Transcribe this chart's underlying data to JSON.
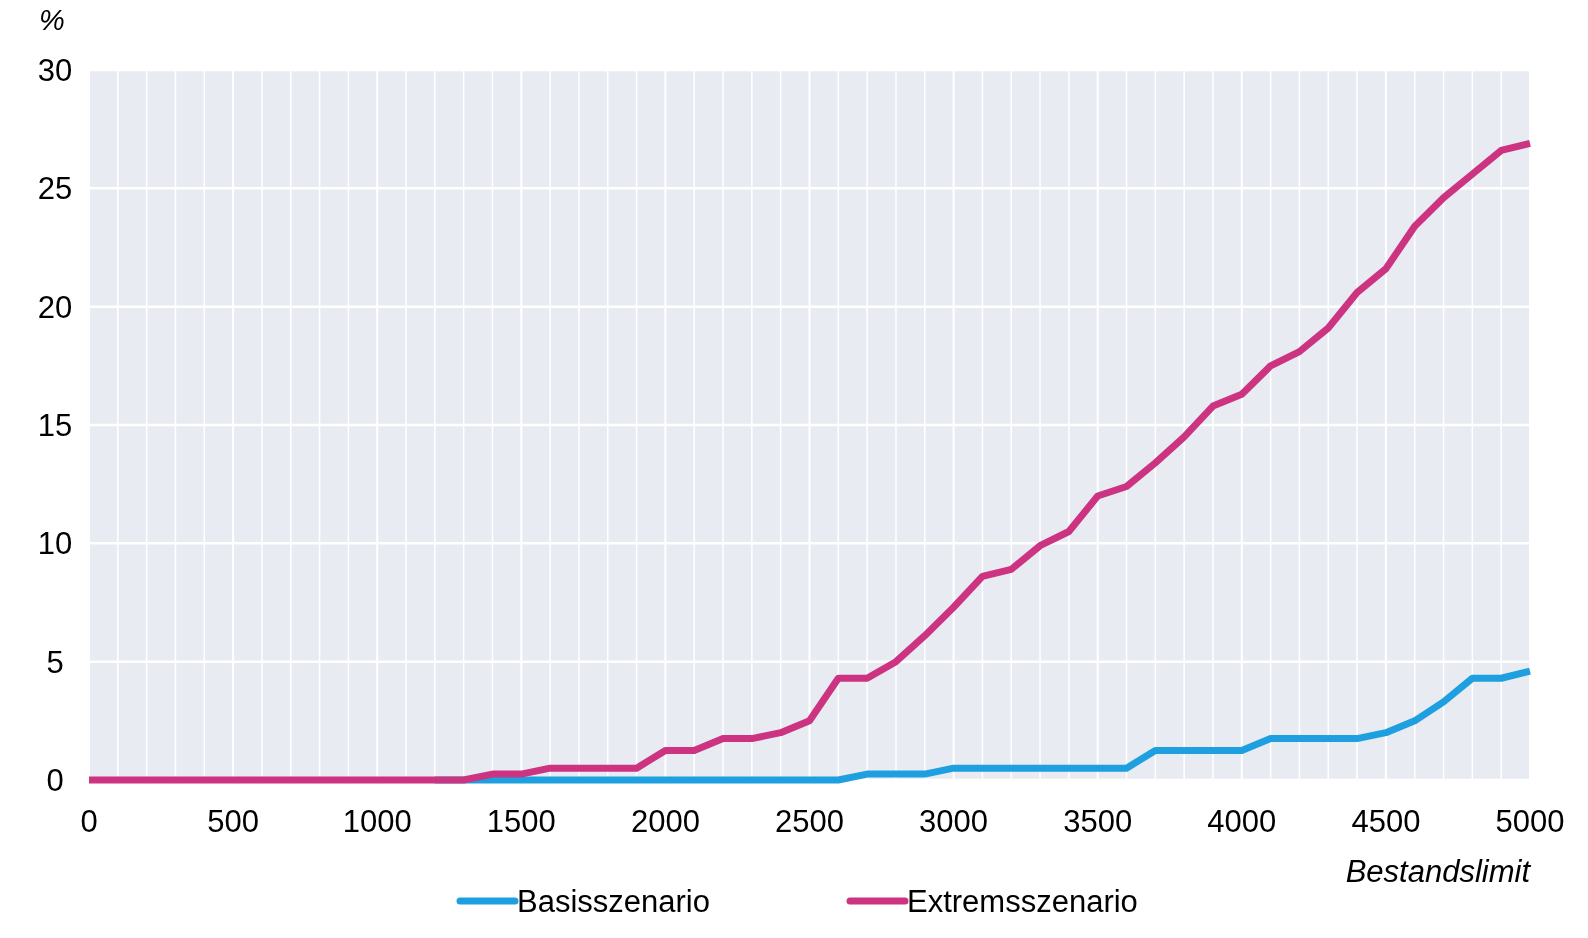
{
  "chart_data": {
    "type": "line",
    "ylabel": "%",
    "xlabel": "Bestandslimit",
    "x": [
      0,
      100,
      200,
      300,
      400,
      500,
      600,
      700,
      800,
      900,
      1000,
      1100,
      1200,
      1300,
      1400,
      1500,
      1600,
      1700,
      1800,
      1900,
      2000,
      2100,
      2200,
      2300,
      2400,
      2500,
      2600,
      2700,
      2800,
      2900,
      3000,
      3100,
      3200,
      3300,
      3400,
      3500,
      3600,
      3700,
      3800,
      3900,
      4000,
      4100,
      4200,
      4300,
      4400,
      4500,
      4600,
      4700,
      4800,
      4900,
      5000
    ],
    "series": [
      {
        "name": "Basisszenario",
        "color": "#1ea0e0",
        "values": [
          null,
          null,
          null,
          null,
          null,
          null,
          null,
          null,
          null,
          null,
          null,
          null,
          0,
          0,
          0,
          0,
          0,
          0,
          0,
          0,
          0,
          0,
          0,
          0,
          0,
          0,
          0,
          0.25,
          0.25,
          0.25,
          0.5,
          0.5,
          0.5,
          0.5,
          0.5,
          0.5,
          0.5,
          1.25,
          1.25,
          1.25,
          1.25,
          1.75,
          1.75,
          1.75,
          1.75,
          2.0,
          2.5,
          3.3,
          4.3,
          4.3,
          4.6
        ]
      },
      {
        "name": "Extremsszenario",
        "color": "#cc3380",
        "values": [
          0,
          0,
          0,
          0,
          0,
          0,
          0,
          0,
          0,
          0,
          0,
          0,
          0,
          0,
          0.25,
          0.25,
          0.5,
          0.5,
          0.5,
          0.5,
          1.25,
          1.25,
          1.75,
          1.75,
          2.0,
          2.5,
          4.3,
          4.3,
          5.0,
          6.1,
          7.3,
          8.6,
          8.9,
          9.9,
          10.5,
          12.0,
          12.4,
          13.4,
          14.5,
          15.8,
          16.3,
          17.5,
          18.1,
          19.1,
          20.6,
          21.6,
          23.4,
          24.6,
          25.6,
          26.6,
          26.9
        ]
      }
    ],
    "xlim": [
      0,
      5000
    ],
    "xticks": [
      0,
      {
        "value": 100,
        "label": null
      },
      {
        "value": 200,
        "label": null
      },
      {
        "value": 300,
        "label": null
      },
      {
        "value": 400,
        "label": null
      },
      500,
      {
        "value": 600,
        "label": null
      },
      {
        "value": 700,
        "label": null
      },
      {
        "value": 800,
        "label": null
      },
      {
        "value": 900,
        "label": null
      },
      1000,
      {
        "value": 1100,
        "label": null
      },
      {
        "value": 1200,
        "label": null
      },
      {
        "value": 1300,
        "label": null
      },
      {
        "value": 1400,
        "label": null
      },
      1500,
      {
        "value": 1600,
        "label": null
      },
      {
        "value": 1700,
        "label": null
      },
      {
        "value": 1800,
        "label": null
      },
      {
        "value": 1900,
        "label": null
      },
      2000,
      {
        "value": 2100,
        "label": null
      },
      {
        "value": 2200,
        "label": null
      },
      {
        "value": 2300,
        "label": null
      },
      {
        "value": 2400,
        "label": null
      },
      2500,
      {
        "value": 2600,
        "label": null
      },
      {
        "value": 2700,
        "label": null
      },
      {
        "value": 2800,
        "label": null
      },
      {
        "value": 2900,
        "label": null
      },
      3000,
      {
        "value": 3100,
        "label": null
      },
      {
        "value": 3200,
        "label": null
      },
      {
        "value": 3300,
        "label": null
      },
      {
        "value": 3400,
        "label": null
      },
      3500,
      {
        "value": 3600,
        "label": null
      },
      {
        "value": 3700,
        "label": null
      },
      {
        "value": 3800,
        "label": null
      },
      {
        "value": 3900,
        "label": null
      },
      4000,
      {
        "value": 4100,
        "label": null
      },
      {
        "value": 4200,
        "label": null
      },
      {
        "value": 4300,
        "label": null
      },
      {
        "value": 4400,
        "label": null
      },
      4500,
      {
        "value": 4600,
        "label": null
      },
      {
        "value": 4700,
        "label": null
      },
      {
        "value": 4800,
        "label": null
      },
      {
        "value": 4900,
        "label": null
      },
      5000
    ],
    "ylim": [
      0,
      30
    ],
    "yticks": [
      0,
      5,
      10,
      15,
      20,
      25,
      30
    ],
    "grid": true,
    "legend": "bottom",
    "marker": "none",
    "line_style": "solid"
  }
}
